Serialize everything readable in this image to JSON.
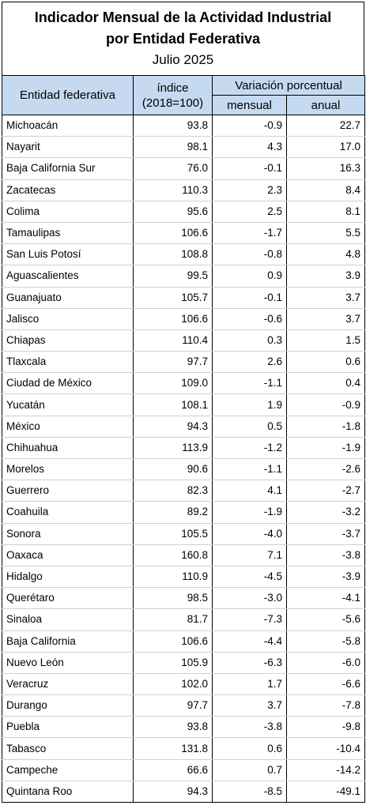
{
  "title": {
    "line1": "Indicador Mensual de la Actividad Industrial",
    "line2": "por Entidad Federativa",
    "period": "Julio 2025"
  },
  "headers": {
    "entity": "Entidad federativa",
    "index_line1": "índice",
    "index_line2": "(2018=100)",
    "variation": "Variación porcentual",
    "monthly": "mensual",
    "annual": "anual"
  },
  "rows": [
    {
      "entidad": "Michoacán",
      "indice": "93.8",
      "mensual": "-0.9",
      "anual": "22.7"
    },
    {
      "entidad": "Nayarit",
      "indice": "98.1",
      "mensual": "4.3",
      "anual": "17.0"
    },
    {
      "entidad": "Baja California Sur",
      "indice": "76.0",
      "mensual": "-0.1",
      "anual": "16.3"
    },
    {
      "entidad": "Zacatecas",
      "indice": "110.3",
      "mensual": "2.3",
      "anual": "8.4"
    },
    {
      "entidad": "Colima",
      "indice": "95.6",
      "mensual": "2.5",
      "anual": "8.1"
    },
    {
      "entidad": "Tamaulipas",
      "indice": "106.6",
      "mensual": "-1.7",
      "anual": "5.5"
    },
    {
      "entidad": "San Luis Potosí",
      "indice": "108.8",
      "mensual": "-0.8",
      "anual": "4.8"
    },
    {
      "entidad": "Aguascalientes",
      "indice": "99.5",
      "mensual": "0.9",
      "anual": "3.9"
    },
    {
      "entidad": "Guanajuato",
      "indice": "105.7",
      "mensual": "-0.1",
      "anual": "3.7"
    },
    {
      "entidad": "Jalisco",
      "indice": "106.6",
      "mensual": "-0.6",
      "anual": "3.7"
    },
    {
      "entidad": "Chiapas",
      "indice": "110.4",
      "mensual": "0.3",
      "anual": "1.5"
    },
    {
      "entidad": "Tlaxcala",
      "indice": "97.7",
      "mensual": "2.6",
      "anual": "0.6"
    },
    {
      "entidad": "Ciudad de México",
      "indice": "109.0",
      "mensual": "-1.1",
      "anual": "0.4"
    },
    {
      "entidad": "Yucatán",
      "indice": "108.1",
      "mensual": "1.9",
      "anual": "-0.9"
    },
    {
      "entidad": "México",
      "indice": "94.3",
      "mensual": "0.5",
      "anual": "-1.8"
    },
    {
      "entidad": "Chihuahua",
      "indice": "113.9",
      "mensual": "-1.2",
      "anual": "-1.9"
    },
    {
      "entidad": "Morelos",
      "indice": "90.6",
      "mensual": "-1.1",
      "anual": "-2.6"
    },
    {
      "entidad": "Guerrero",
      "indice": "82.3",
      "mensual": "4.1",
      "anual": "-2.7"
    },
    {
      "entidad": "Coahuila",
      "indice": "89.2",
      "mensual": "-1.9",
      "anual": "-3.2"
    },
    {
      "entidad": "Sonora",
      "indice": "105.5",
      "mensual": "-4.0",
      "anual": "-3.7"
    },
    {
      "entidad": "Oaxaca",
      "indice": "160.8",
      "mensual": "7.1",
      "anual": "-3.8"
    },
    {
      "entidad": "Hidalgo",
      "indice": "110.9",
      "mensual": "-4.5",
      "anual": "-3.9"
    },
    {
      "entidad": "Querétaro",
      "indice": "98.5",
      "mensual": "-3.0",
      "anual": "-4.1"
    },
    {
      "entidad": "Sinaloa",
      "indice": "81.7",
      "mensual": "-7.3",
      "anual": "-5.6"
    },
    {
      "entidad": "Baja California",
      "indice": "106.6",
      "mensual": "-4.4",
      "anual": "-5.8"
    },
    {
      "entidad": "Nuevo León",
      "indice": "105.9",
      "mensual": "-6.3",
      "anual": "-6.0"
    },
    {
      "entidad": "Veracruz",
      "indice": "102.0",
      "mensual": "1.7",
      "anual": "-6.6"
    },
    {
      "entidad": "Durango",
      "indice": "97.7",
      "mensual": "3.7",
      "anual": "-7.8"
    },
    {
      "entidad": "Puebla",
      "indice": "93.8",
      "mensual": "-3.8",
      "anual": "-9.8"
    },
    {
      "entidad": "Tabasco",
      "indice": "131.8",
      "mensual": "0.6",
      "anual": "-10.4"
    },
    {
      "entidad": "Campeche",
      "indice": "66.6",
      "mensual": "0.7",
      "anual": "-14.2"
    },
    {
      "entidad": "Quintana Roo",
      "indice": "94.3",
      "mensual": "-8.5",
      "anual": "-49.1"
    }
  ],
  "colors": {
    "header_bg": "#c5d9f1"
  }
}
